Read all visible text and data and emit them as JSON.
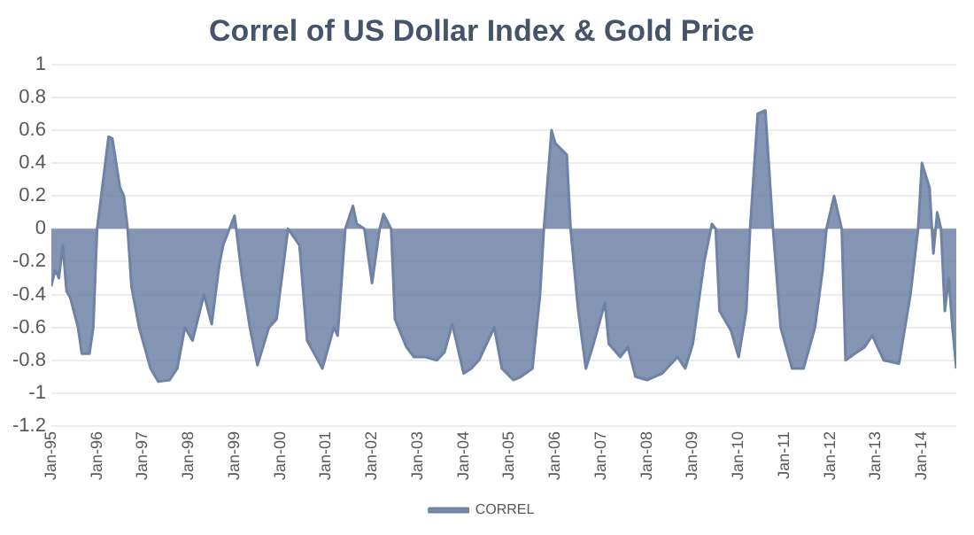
{
  "chart_data": {
    "type": "area",
    "title": "Correl of US Dollar Index & Gold Price",
    "x": [
      "1995-01",
      "1995-02",
      "1995-03",
      "1995-04",
      "1995-05",
      "1995-06",
      "1995-08",
      "1995-09",
      "1995-11",
      "1995-12",
      "1996-01",
      "1996-04",
      "1996-05",
      "1996-07",
      "1996-08",
      "1996-09",
      "1996-10",
      "1996-12",
      "1997-03",
      "1997-05",
      "1997-08",
      "1997-10",
      "1997-12",
      "1998-02",
      "1998-05",
      "1998-07",
      "1998-09",
      "1998-10",
      "1999-01",
      "1999-03",
      "1999-05",
      "1999-07",
      "1999-10",
      "1999-12",
      "2000-03",
      "2000-06",
      "2000-08",
      "2000-12",
      "2001-03",
      "2001-04",
      "2001-06",
      "2001-08",
      "2001-09",
      "2001-11",
      "2002-01",
      "2002-03",
      "2002-04",
      "2002-06",
      "2002-07",
      "2002-10",
      "2002-12",
      "2003-03",
      "2003-06",
      "2003-08",
      "2003-10",
      "2004-01",
      "2004-03",
      "2004-05",
      "2004-09",
      "2004-11",
      "2005-02",
      "2005-04",
      "2005-07",
      "2005-09",
      "2005-10",
      "2005-12",
      "2006-01",
      "2006-04",
      "2006-05",
      "2006-07",
      "2006-09",
      "2006-11",
      "2007-02",
      "2007-03",
      "2007-06",
      "2007-08",
      "2007-10",
      "2008-01",
      "2008-05",
      "2008-09",
      "2008-11",
      "2009-01",
      "2009-04",
      "2009-06",
      "2009-07",
      "2009-08",
      "2009-11",
      "2010-01",
      "2010-03",
      "2010-04",
      "2010-06",
      "2010-08",
      "2010-10",
      "2010-12",
      "2011-03",
      "2011-06",
      "2011-09",
      "2011-11",
      "2011-12",
      "2012-02",
      "2012-04",
      "2012-05",
      "2012-08",
      "2012-10",
      "2012-12",
      "2013-03",
      "2013-07",
      "2013-10",
      "2013-12",
      "2014-01",
      "2014-03",
      "2014-04",
      "2014-05",
      "2014-06",
      "2014-07",
      "2014-08",
      "2014-09",
      "2014-10"
    ],
    "series": [
      {
        "name": "CORREL",
        "color": "#6f83a6",
        "values": [
          -0.35,
          -0.25,
          -0.3,
          -0.1,
          -0.38,
          -0.42,
          -0.6,
          -0.76,
          -0.76,
          -0.6,
          0.0,
          0.56,
          0.55,
          0.25,
          0.2,
          0.0,
          -0.35,
          -0.6,
          -0.85,
          -0.93,
          -0.92,
          -0.85,
          -0.6,
          -0.68,
          -0.4,
          -0.58,
          -0.22,
          -0.1,
          0.08,
          -0.3,
          -0.6,
          -0.83,
          -0.6,
          -0.55,
          0.0,
          -0.1,
          -0.68,
          -0.85,
          -0.6,
          -0.65,
          0.0,
          0.14,
          0.03,
          0.0,
          -0.33,
          0.0,
          0.09,
          0.0,
          -0.55,
          -0.72,
          -0.78,
          -0.78,
          -0.8,
          -0.75,
          -0.58,
          -0.88,
          -0.85,
          -0.8,
          -0.6,
          -0.85,
          -0.92,
          -0.9,
          -0.85,
          -0.4,
          0.0,
          0.6,
          0.52,
          0.45,
          0.0,
          -0.5,
          -0.85,
          -0.7,
          -0.45,
          -0.7,
          -0.78,
          -0.72,
          -0.9,
          -0.92,
          -0.88,
          -0.78,
          -0.85,
          -0.7,
          -0.2,
          0.03,
          0.0,
          -0.5,
          -0.62,
          -0.78,
          -0.5,
          0.0,
          0.7,
          0.72,
          0.0,
          -0.6,
          -0.85,
          -0.85,
          -0.6,
          -0.25,
          0.0,
          0.2,
          0.0,
          -0.8,
          -0.75,
          -0.72,
          -0.65,
          -0.8,
          -0.82,
          -0.4,
          0.0,
          0.4,
          0.25,
          -0.15,
          0.1,
          0.0,
          -0.5,
          -0.3,
          -0.6,
          -0.85
        ]
      }
    ],
    "xlim": [
      "1995-01",
      "2014-10"
    ],
    "xticks": [
      {
        "value": "1995-01",
        "label": "Jan-95"
      },
      {
        "value": "1996-01",
        "label": "Jan-96"
      },
      {
        "value": "1997-01",
        "label": "Jan-97"
      },
      {
        "value": "1998-01",
        "label": "Jan-98"
      },
      {
        "value": "1999-01",
        "label": "Jan-99"
      },
      {
        "value": "2000-01",
        "label": "Jan-00"
      },
      {
        "value": "2001-01",
        "label": "Jan-01"
      },
      {
        "value": "2002-01",
        "label": "Jan-02"
      },
      {
        "value": "2003-01",
        "label": "Jan-03"
      },
      {
        "value": "2004-01",
        "label": "Jan-04"
      },
      {
        "value": "2005-01",
        "label": "Jan-05"
      },
      {
        "value": "2006-01",
        "label": "Jan-06"
      },
      {
        "value": "2007-01",
        "label": "Jan-07"
      },
      {
        "value": "2008-01",
        "label": "Jan-08"
      },
      {
        "value": "2009-01",
        "label": "Jan-09"
      },
      {
        "value": "2010-01",
        "label": "Jan-10"
      },
      {
        "value": "2011-01",
        "label": "Jan-11"
      },
      {
        "value": "2012-01",
        "label": "Jan-12"
      },
      {
        "value": "2013-01",
        "label": "Jan-13"
      },
      {
        "value": "2014-01",
        "label": "Jan-14"
      }
    ],
    "ylim": [
      -1.2,
      1
    ],
    "yticks": [
      -1.2,
      -1,
      -0.8,
      -0.6,
      -0.4,
      -0.2,
      0,
      0.2,
      0.4,
      0.6,
      0.8,
      1
    ],
    "grid": "y",
    "legend": "bottom"
  }
}
